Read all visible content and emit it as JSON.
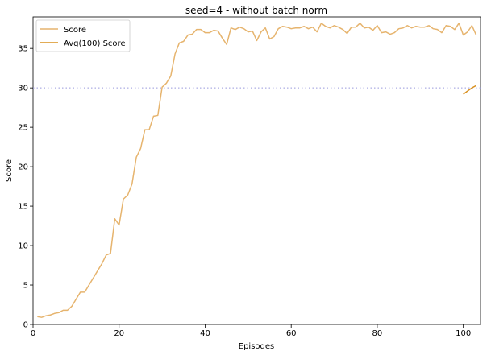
{
  "chart_data": {
    "type": "line",
    "title": "seed=4 - without batch norm",
    "xlabel": "Episodes",
    "ylabel": "Score",
    "xlim": [
      0,
      104
    ],
    "ylim": [
      0,
      39
    ],
    "xticks": [
      0,
      20,
      40,
      60,
      80,
      100
    ],
    "yticks": [
      0,
      5,
      10,
      15,
      20,
      25,
      30,
      35
    ],
    "grid": false,
    "legend_position": "top-left",
    "threshold": {
      "y": 30,
      "style": "dotted",
      "color": "#9999dd"
    },
    "series": [
      {
        "name": "Score",
        "color": "#e6b46e",
        "x": [
          1,
          2,
          3,
          4,
          5,
          6,
          7,
          8,
          9,
          10,
          11,
          12,
          13,
          14,
          15,
          16,
          17,
          18,
          19,
          20,
          21,
          22,
          23,
          24,
          25,
          26,
          27,
          28,
          29,
          30,
          31,
          32,
          33,
          34,
          35,
          36,
          37,
          38,
          39,
          40,
          41,
          42,
          43,
          44,
          45,
          46,
          47,
          48,
          49,
          50,
          51,
          52,
          53,
          54,
          55,
          56,
          57,
          58,
          59,
          60,
          61,
          62,
          63,
          64,
          65,
          66,
          67,
          68,
          69,
          70,
          71,
          72,
          73,
          74,
          75,
          76,
          77,
          78,
          79,
          80,
          81,
          82,
          83,
          84,
          85,
          86,
          87,
          88,
          89,
          90,
          91,
          92,
          93,
          94,
          95,
          96,
          97,
          98,
          99,
          100,
          101,
          102,
          103
        ],
        "values": [
          1.0,
          0.9,
          1.1,
          1.2,
          1.4,
          1.5,
          1.8,
          1.8,
          2.3,
          3.2,
          4.1,
          4.1,
          5.0,
          5.9,
          6.8,
          7.7,
          8.8,
          9.0,
          13.4,
          12.6,
          15.9,
          16.4,
          17.8,
          21.2,
          22.3,
          24.7,
          24.7,
          26.4,
          26.5,
          30.1,
          30.6,
          31.5,
          34.3,
          35.7,
          35.9,
          36.7,
          36.8,
          37.4,
          37.4,
          37.0,
          37.0,
          37.3,
          37.2,
          36.3,
          35.5,
          37.6,
          37.4,
          37.7,
          37.5,
          37.1,
          37.2,
          36.0,
          37.1,
          37.6,
          36.2,
          36.5,
          37.5,
          37.8,
          37.7,
          37.5,
          37.6,
          37.6,
          37.8,
          37.5,
          37.7,
          37.1,
          38.2,
          37.8,
          37.6,
          37.9,
          37.7,
          37.4,
          36.9,
          37.7,
          37.7,
          38.2,
          37.6,
          37.7,
          37.3,
          37.9,
          37.0,
          37.1,
          36.8,
          37.0,
          37.5,
          37.6,
          37.9,
          37.6,
          37.8,
          37.7,
          37.7,
          37.9,
          37.5,
          37.4,
          37.0,
          37.9,
          37.8,
          37.4,
          38.2,
          36.7,
          37.1,
          37.9,
          36.7
        ]
      },
      {
        "name": "Avg(100) Score",
        "color": "#d9901e",
        "x": [
          100,
          101,
          102,
          103
        ],
        "values": [
          29.2,
          29.6,
          30.0,
          30.3
        ]
      }
    ]
  }
}
